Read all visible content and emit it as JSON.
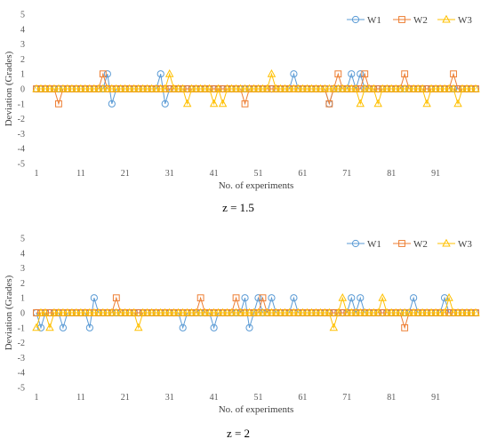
{
  "chart_data": [
    {
      "type": "line",
      "caption": "z = 1.5",
      "xlabel": "No. of experiments",
      "ylabel": "Deviation (Grades)",
      "ylim": [
        -5,
        5
      ],
      "xlim": [
        1,
        100
      ],
      "xticks": [
        1,
        11,
        21,
        31,
        41,
        51,
        61,
        71,
        81,
        91
      ],
      "yticks": [
        5,
        4,
        3,
        2,
        1,
        0,
        -1,
        -2,
        -3,
        -4,
        -5
      ],
      "grid": false,
      "legend_position": "top-right",
      "n_points": 100,
      "series": [
        {
          "name": "W1",
          "color": "#5B9BD5",
          "marker": "circle",
          "nonzero": [
            [
              17,
              1
            ],
            [
              18,
              -1
            ],
            [
              29,
              1
            ],
            [
              30,
              -1
            ],
            [
              59,
              1
            ],
            [
              67,
              -1
            ],
            [
              72,
              1
            ],
            [
              74,
              1
            ]
          ]
        },
        {
          "name": "W2",
          "color": "#ED7D31",
          "marker": "square",
          "nonzero": [
            [
              6,
              -1
            ],
            [
              16,
              1
            ],
            [
              48,
              -1
            ],
            [
              67,
              -1
            ],
            [
              69,
              1
            ],
            [
              75,
              1
            ],
            [
              84,
              1
            ],
            [
              95,
              1
            ]
          ]
        },
        {
          "name": "W3",
          "color": "#FFC000",
          "marker": "triangle",
          "nonzero": [
            [
              31,
              1
            ],
            [
              35,
              -1
            ],
            [
              41,
              -1
            ],
            [
              43,
              -1
            ],
            [
              54,
              1
            ],
            [
              74,
              -1
            ],
            [
              78,
              -1
            ],
            [
              89,
              -1
            ],
            [
              96,
              -1
            ]
          ]
        }
      ]
    },
    {
      "type": "line",
      "caption": "z = 2",
      "xlabel": "No. of experiments",
      "ylabel": "Deviation (Grades)",
      "ylim": [
        -5,
        5
      ],
      "xlim": [
        1,
        100
      ],
      "xticks": [
        1,
        11,
        21,
        31,
        41,
        51,
        61,
        71,
        81,
        91
      ],
      "yticks": [
        5,
        4,
        3,
        2,
        1,
        0,
        -1,
        -2,
        -3,
        -4,
        -5
      ],
      "grid": false,
      "legend_position": "top-right",
      "n_points": 100,
      "series": [
        {
          "name": "W1",
          "color": "#5B9BD5",
          "marker": "circle",
          "nonzero": [
            [
              2,
              -1
            ],
            [
              7,
              -1
            ],
            [
              13,
              -1
            ],
            [
              14,
              1
            ],
            [
              34,
              -1
            ],
            [
              41,
              -1
            ],
            [
              48,
              1
            ],
            [
              49,
              -1
            ],
            [
              51,
              1
            ],
            [
              54,
              1
            ],
            [
              59,
              1
            ],
            [
              72,
              1
            ],
            [
              74,
              1
            ],
            [
              86,
              1
            ],
            [
              93,
              1
            ]
          ]
        },
        {
          "name": "W2",
          "color": "#ED7D31",
          "marker": "square",
          "nonzero": [
            [
              19,
              1
            ],
            [
              38,
              1
            ],
            [
              46,
              1
            ],
            [
              52,
              1
            ],
            [
              84,
              -1
            ]
          ]
        },
        {
          "name": "W3",
          "color": "#FFC000",
          "marker": "triangle",
          "nonzero": [
            [
              1,
              -1
            ],
            [
              4,
              -1
            ],
            [
              24,
              -1
            ],
            [
              68,
              -1
            ],
            [
              70,
              1
            ],
            [
              79,
              1
            ],
            [
              94,
              1
            ]
          ]
        }
      ]
    }
  ]
}
